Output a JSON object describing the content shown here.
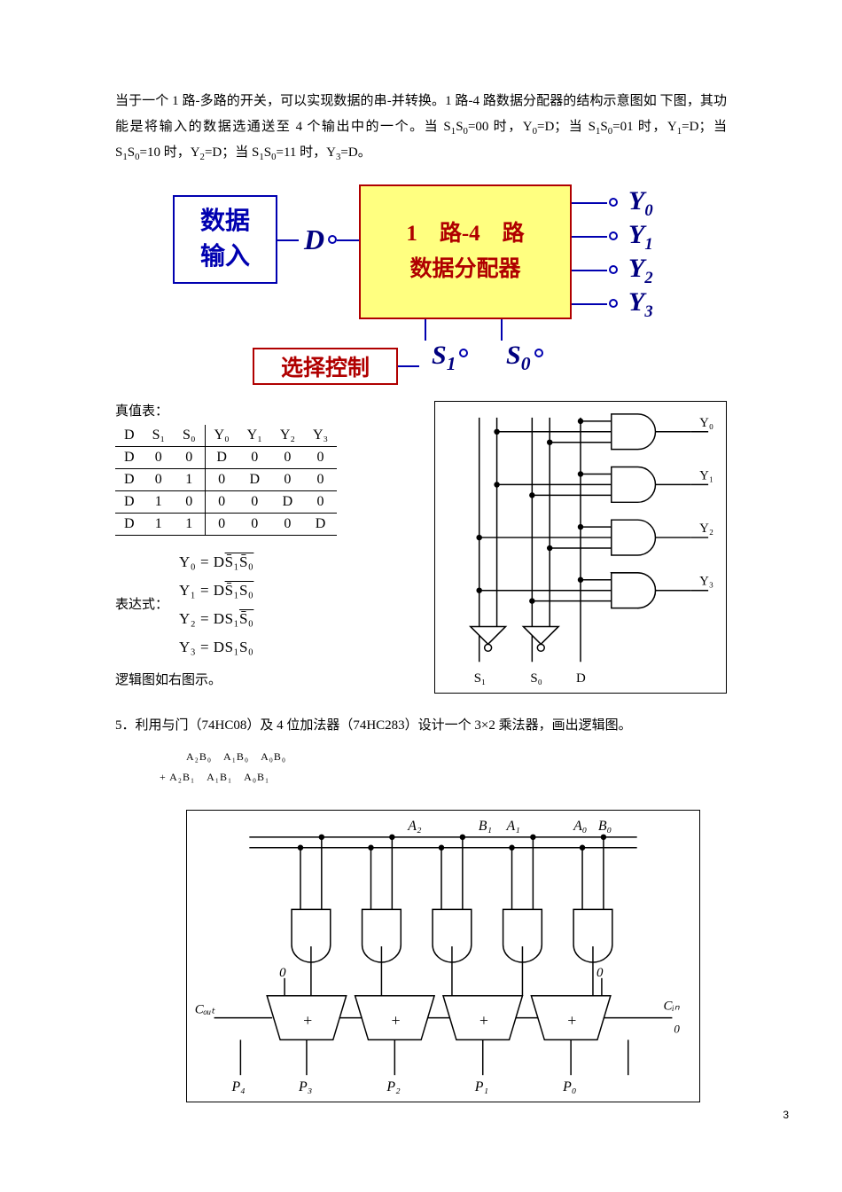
{
  "intro": {
    "line1_a": "当于一个 1 路-多路的开关，可以实现数据的串-并转换。1 路-4 路数据分配器的结构示意图如",
    "line2": "下图，其功能是将输入的数据选通送至 4 个输出中的一个。当 S",
    "ss00": "=00 时，Y",
    "yd": "=D；当 S",
    "ss01": "=01",
    "line3a": "时，Y",
    "y1d": "=D；当 S",
    "ss10": "=10 时，Y",
    "y2d": "=D；当 S",
    "ss11": "=11 时，Y",
    "y3d": "=D。"
  },
  "block": {
    "data_in_l1": "数据",
    "data_in_l2": "输入",
    "main_l1": "1　路-4　路",
    "main_l2": "数据分配器",
    "sel": "选择控制",
    "D": "D",
    "Y0": "Y",
    "Y0s": "0",
    "Y1": "Y",
    "Y1s": "1",
    "Y2": "Y",
    "Y2s": "2",
    "Y3": "Y",
    "Y3s": "3",
    "S1": "S",
    "S1s": "1",
    "S0": "S",
    "S0s": "0",
    "colors": {
      "wire": "#0000B0",
      "red": "#B00000",
      "yellow": "#FFFF80"
    }
  },
  "truth_table": {
    "label": "真值表：",
    "headers": [
      "D",
      "S₁",
      "S₀",
      "Y₀",
      "Y₁",
      "Y₂",
      "Y₃"
    ],
    "rows": [
      [
        "D",
        "0",
        "0",
        "D",
        "0",
        "0",
        "0"
      ],
      [
        "D",
        "0",
        "1",
        "0",
        "D",
        "0",
        "0"
      ],
      [
        "D",
        "1",
        "0",
        "0",
        "0",
        "D",
        "0"
      ],
      [
        "D",
        "1",
        "1",
        "0",
        "0",
        "0",
        "D"
      ]
    ]
  },
  "expr": {
    "label": "表达式：",
    "y0": "Y₀ = D",
    "y0b": "S̄₁S̄₀",
    "y1": "Y₁ = D",
    "y1b": "S̄₁S₀",
    "y2": "Y₂ = DS₁",
    "y2b": "S̄₀",
    "y3": "Y₃ = DS₁S₀"
  },
  "logic_labels": {
    "Y0": "Y₀",
    "Y1": "Y₁",
    "Y2": "Y₂",
    "Y3": "Y₃",
    "S1": "S₁",
    "S0": "S₀",
    "D": "D"
  },
  "logic_note": "逻辑图如右图示。",
  "q5": "5．利用与门（74HC08）及 4 位加法器（74HC283）设计一个 3×2 乘法器，画出逻辑图。",
  "pp": {
    "r1": "A₂B₀　A₁B₀　A₀B₀",
    "r2": "+  A₂B₁　A₁B₁　A₀B₁"
  },
  "adder": {
    "inputs": [
      "A₂",
      "B₁",
      "A₁",
      "A₀",
      "B₀"
    ],
    "zeros": "0",
    "Cout": "Cout",
    "Cin": "Cin",
    "cin0": "0",
    "plus": "+",
    "outs": [
      "P₄",
      "P₃",
      "P₂",
      "P₁",
      "P₀"
    ]
  },
  "page_num": "3"
}
